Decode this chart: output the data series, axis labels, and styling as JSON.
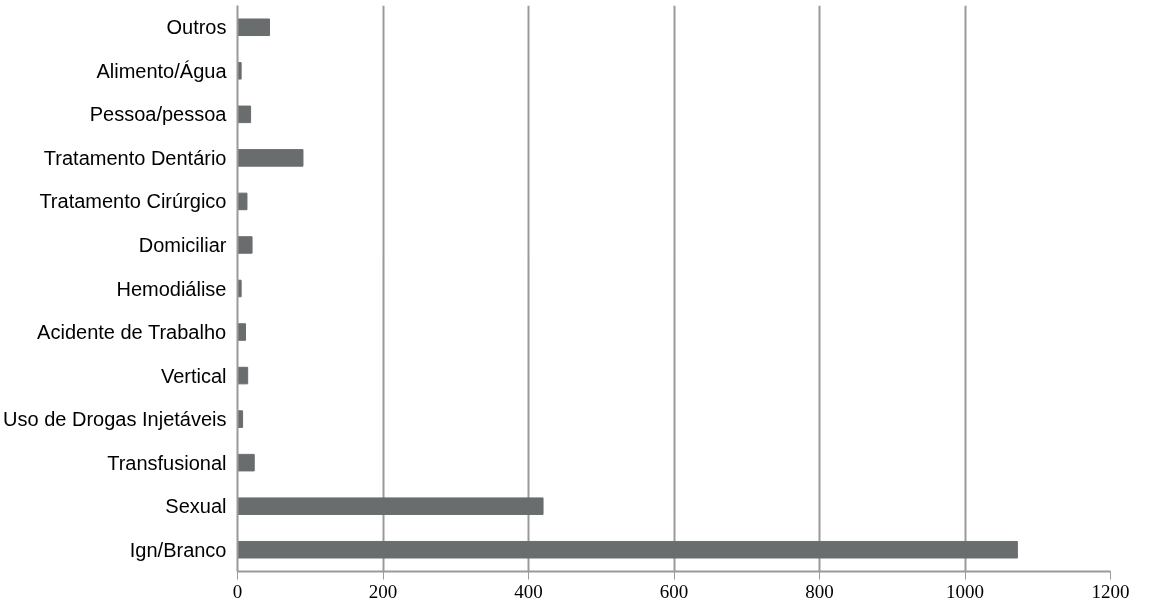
{
  "chart_data": {
    "type": "bar",
    "orientation": "horizontal",
    "categories": [
      "Outros",
      "Alimento/Água",
      "Pessoa/pessoa",
      "Tratamento Dentário",
      "Tratamento Cirúrgico",
      "Domiciliar",
      "Hemodiálise",
      "Acidente de Trabalho",
      "Vertical",
      "Uso de Drogas Injetáveis",
      "Transfusional",
      "Sexual",
      "Ign/Branco"
    ],
    "values": [
      44,
      5,
      18,
      90,
      13,
      20,
      5,
      11,
      14,
      7,
      23,
      420,
      1072
    ],
    "color": "#6a6d6e",
    "xlim": [
      0,
      1200
    ],
    "xticks": [
      0,
      200,
      400,
      600,
      800,
      1000,
      1200
    ],
    "grid": "x"
  }
}
